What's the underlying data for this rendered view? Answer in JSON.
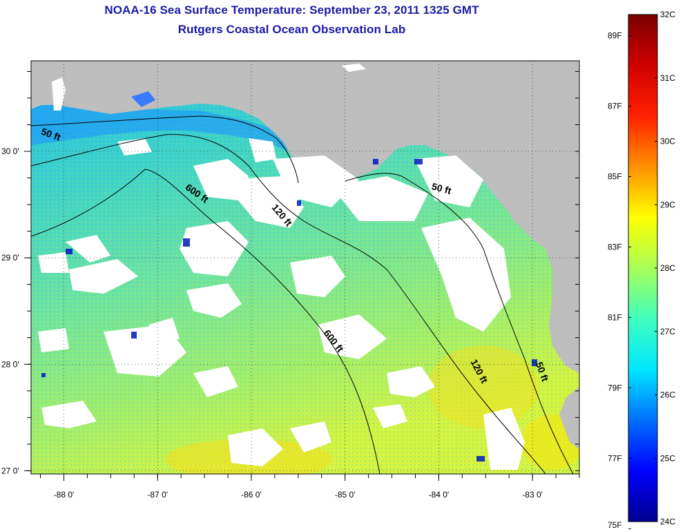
{
  "title": {
    "line1": "NOAA-16 Sea Surface Temperature:  September 23, 2011 1325 GMT",
    "line2": "Rutgers Coastal Ocean Observation Lab"
  },
  "map": {
    "lon_range": [
      -88.35,
      -82.5
    ],
    "lat_range": [
      26.97,
      30.85
    ],
    "land_color": "#bebebe",
    "cloud_color": "#ffffff",
    "grid": "dotted",
    "lon_ticks": [
      {
        "value": -88,
        "label": "-88 0'"
      },
      {
        "value": -87,
        "label": "-87 0'"
      },
      {
        "value": -86,
        "label": "-86 0'"
      },
      {
        "value": -85,
        "label": "-85 0'"
      },
      {
        "value": -84,
        "label": "-84 0'"
      },
      {
        "value": -83,
        "label": "-83 0'"
      }
    ],
    "lat_ticks": [
      {
        "value": 30,
        "label": "30 0'"
      },
      {
        "value": 29,
        "label": "29 0'"
      },
      {
        "value": 28,
        "label": "28 0'"
      },
      {
        "value": 27,
        "label": "27 0'"
      }
    ],
    "contour_labels": [
      {
        "text": "50 ft",
        "lon": -88.15,
        "lat": 30.13
      },
      {
        "text": "600 ft",
        "lon": -86.6,
        "lat": 29.58
      },
      {
        "text": "120 ft",
        "lon": -85.7,
        "lat": 29.38
      },
      {
        "text": "50 ft",
        "lon": -83.98,
        "lat": 29.62
      },
      {
        "text": "600 ft",
        "lon": -85.15,
        "lat": 28.2
      },
      {
        "text": "120 ft",
        "lon": -83.6,
        "lat": 27.92
      },
      {
        "text": "50 ft",
        "lon": -82.93,
        "lat": 27.92
      }
    ]
  },
  "colorbar": {
    "range_c": [
      24,
      32
    ],
    "range_f": [
      75.2,
      89.6
    ],
    "colors": [
      "#00008f",
      "#0000ff",
      "#0070ff",
      "#00e6ff",
      "#40ffbf",
      "#a8ff57",
      "#ffff00",
      "#ff9000",
      "#ff2000",
      "#d00000",
      "#7a0000"
    ],
    "celsius_labels": [
      {
        "value": 32,
        "label": "32C"
      },
      {
        "value": 31,
        "label": "31C"
      },
      {
        "value": 30,
        "label": "30C"
      },
      {
        "value": 29,
        "label": "29C"
      },
      {
        "value": 28,
        "label": "28C"
      },
      {
        "value": 27,
        "label": "27C"
      },
      {
        "value": 26,
        "label": "26C"
      },
      {
        "value": 25,
        "label": "25C"
      },
      {
        "value": 24,
        "label": "24C"
      }
    ],
    "fahrenheit_labels": [
      {
        "value": 89,
        "label": "89F"
      },
      {
        "value": 87,
        "label": "87F"
      },
      {
        "value": 85,
        "label": "85F"
      },
      {
        "value": 83,
        "label": "83F"
      },
      {
        "value": 81,
        "label": "81F"
      },
      {
        "value": 79,
        "label": "79F"
      },
      {
        "value": 77,
        "label": "77F"
      },
      {
        "value": 75,
        "label": "75F"
      }
    ]
  }
}
